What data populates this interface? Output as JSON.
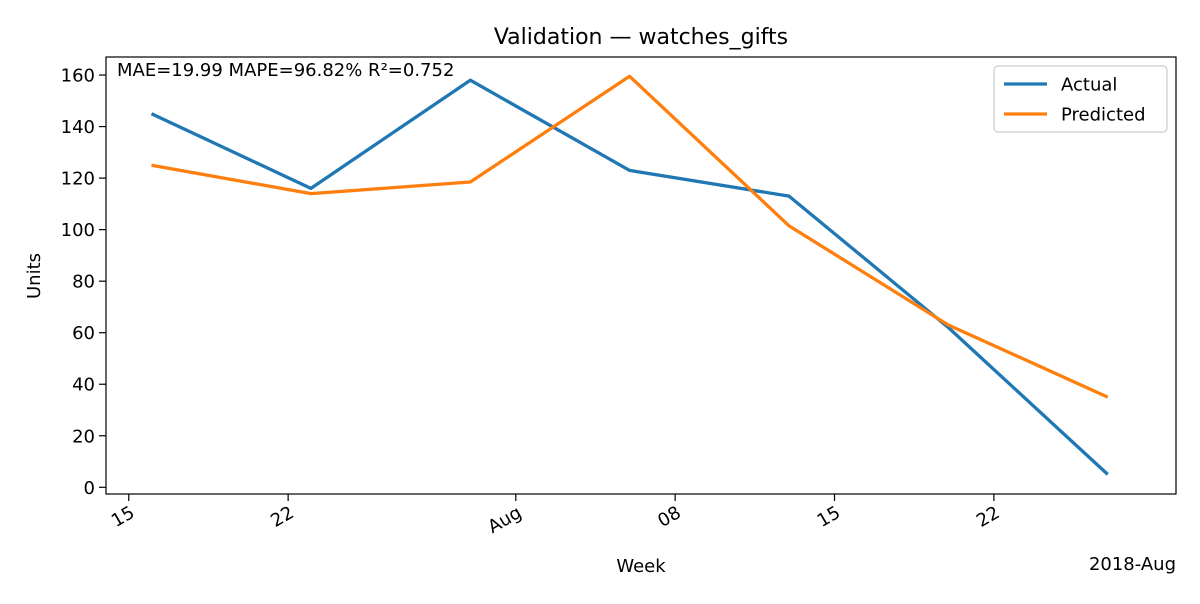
{
  "chart_data": {
    "type": "line",
    "title": "Validation — watches_gifts",
    "xlabel": "Week",
    "ylabel": "Units",
    "metrics_text": "MAE=19.99  MAPE=96.82%  R²=0.752",
    "x_offset_label": "2018-Aug",
    "x_type": "date",
    "x_range": [
      "2018-07-14",
      "2018-08-30"
    ],
    "ylim": [
      -2.6,
      167
    ],
    "yticks": [
      0,
      20,
      40,
      60,
      80,
      100,
      120,
      140,
      160
    ],
    "xticks": [
      {
        "date": "2018-07-15",
        "label": "15"
      },
      {
        "date": "2018-07-22",
        "label": "22"
      },
      {
        "date": "2018-08-01",
        "label": "Aug"
      },
      {
        "date": "2018-08-08",
        "label": "08"
      },
      {
        "date": "2018-08-15",
        "label": "15"
      },
      {
        "date": "2018-08-22",
        "label": "22"
      }
    ],
    "x": [
      "2018-07-16",
      "2018-07-23",
      "2018-07-30",
      "2018-08-06",
      "2018-08-13",
      "2018-08-20",
      "2018-08-27"
    ],
    "series": [
      {
        "name": "Actual",
        "color": "#1f77b4",
        "values": [
          145,
          116,
          158,
          123,
          113,
          62,
          5
        ]
      },
      {
        "name": "Predicted",
        "color": "#ff7f0e",
        "values": [
          125,
          114,
          118.5,
          159.5,
          101.5,
          63,
          35
        ]
      }
    ],
    "legend_position": "top-right",
    "grid": false
  }
}
